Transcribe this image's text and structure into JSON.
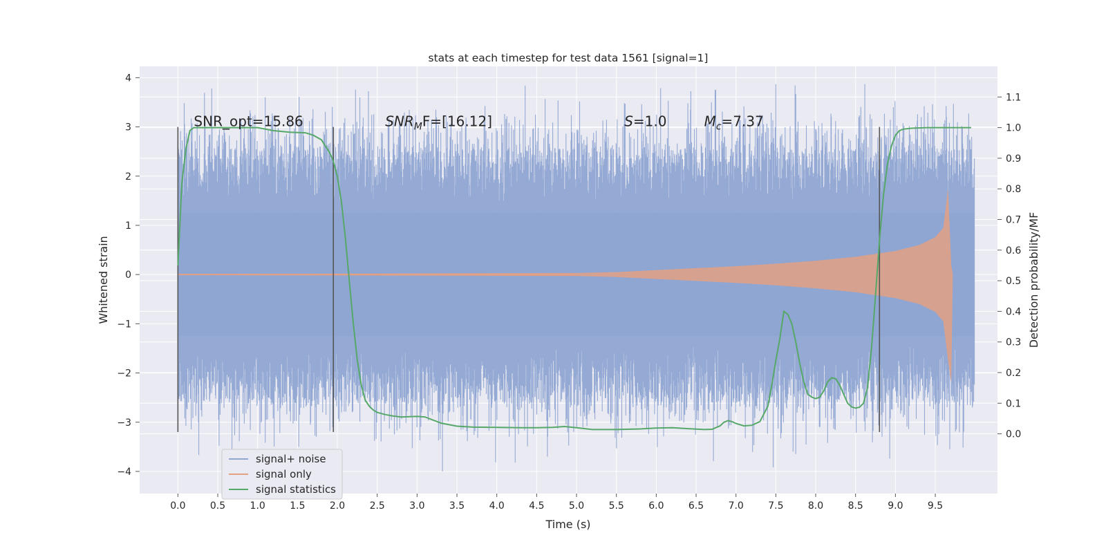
{
  "chart_data": {
    "type": "line",
    "title": "stats at each timestep for test data 1561 [signal=1]",
    "xlabel": "Time (s)",
    "ylabel": "Whitened strain",
    "y2label": "Detection probability/MF",
    "xlim": [
      -0.48,
      10.28
    ],
    "ylim": [
      -4.45,
      4.23
    ],
    "y2lim": [
      -0.195,
      1.2
    ],
    "xticks": [
      0.0,
      0.5,
      1.0,
      1.5,
      2.0,
      2.5,
      3.0,
      3.5,
      4.0,
      4.5,
      5.0,
      5.5,
      6.0,
      6.5,
      7.0,
      7.5,
      8.0,
      8.5,
      9.0,
      9.5
    ],
    "xtick_labels": [
      "0.0",
      "0.5",
      "1.0",
      "1.5",
      "2.0",
      "2.5",
      "3.0",
      "3.5",
      "4.0",
      "4.5",
      "5.0",
      "5.5",
      "6.0",
      "6.5",
      "7.0",
      "7.5",
      "8.0",
      "8.5",
      "9.0",
      "9.5"
    ],
    "yticks": [
      4,
      3,
      2,
      1,
      0,
      -1,
      -2,
      -3,
      -4
    ],
    "ytick_labels": [
      "4",
      "3",
      "2",
      "1",
      "0",
      "−1",
      "−2",
      "−3",
      "−4"
    ],
    "y2ticks": [
      1.1,
      1.0,
      0.9,
      0.8,
      0.7,
      0.6,
      0.5,
      0.4,
      0.3,
      0.2,
      0.1,
      0.0
    ],
    "y2tick_labels": [
      "1.1",
      "1.0",
      "0.9",
      "0.8",
      "0.7",
      "0.6",
      "0.5",
      "0.4",
      "0.3",
      "0.2",
      "0.1",
      "0.0"
    ],
    "grid": true,
    "legend_position": "lower-left",
    "series": [
      {
        "name": "signal+ noise",
        "color": "#8fa5d2",
        "kind": "dense-noise",
        "x_range": [
          0.0,
          9.99
        ],
        "envelope_y": [
          -2.6,
          2.6
        ],
        "spike_max": [
          3.87,
          -4.0
        ]
      },
      {
        "name": "signal only",
        "color": "#e3a083",
        "kind": "chirp",
        "x_range": [
          0.0,
          9.7
        ],
        "envelope_x": [
          0.0,
          5.0,
          5.5,
          6.0,
          6.5,
          7.0,
          7.5,
          8.0,
          8.5,
          9.0,
          9.3,
          9.5,
          9.6,
          9.66,
          9.7,
          9.72
        ],
        "envelope_y": [
          0.01,
          0.03,
          0.05,
          0.09,
          0.13,
          0.17,
          0.22,
          0.28,
          0.36,
          0.48,
          0.6,
          0.76,
          0.95,
          1.75,
          0.2,
          0.0
        ]
      },
      {
        "name": "signal statistics",
        "color": "#55a868",
        "kind": "line",
        "axis": "right",
        "x": [
          0.0,
          0.05,
          0.1,
          0.15,
          0.2,
          0.3,
          0.5,
          0.8,
          1.0,
          1.2,
          1.4,
          1.6,
          1.7,
          1.8,
          1.85,
          1.9,
          1.95,
          2.0,
          2.05,
          2.1,
          2.15,
          2.2,
          2.25,
          2.3,
          2.35,
          2.4,
          2.45,
          2.5,
          2.6,
          2.7,
          2.8,
          3.0,
          3.1,
          3.2,
          3.3,
          3.5,
          3.7,
          4.0,
          4.3,
          4.5,
          4.7,
          4.85,
          5.0,
          5.2,
          5.5,
          5.8,
          6.0,
          6.2,
          6.4,
          6.6,
          6.7,
          6.8,
          6.85,
          6.9,
          6.95,
          7.0,
          7.1,
          7.2,
          7.3,
          7.4,
          7.45,
          7.5,
          7.55,
          7.6,
          7.65,
          7.7,
          7.75,
          7.8,
          7.85,
          7.9,
          7.95,
          8.0,
          8.05,
          8.1,
          8.15,
          8.2,
          8.25,
          8.3,
          8.35,
          8.4,
          8.45,
          8.5,
          8.55,
          8.6,
          8.65,
          8.7,
          8.75,
          8.8,
          8.85,
          8.9,
          8.95,
          9.0,
          9.05,
          9.1,
          9.2,
          9.4,
          9.6,
          9.8,
          9.95
        ],
        "y": [
          0.55,
          0.82,
          0.93,
          0.99,
          1.0,
          1.0,
          1.0,
          1.0,
          1.0,
          0.99,
          0.985,
          0.983,
          0.975,
          0.96,
          0.94,
          0.92,
          0.89,
          0.84,
          0.76,
          0.64,
          0.5,
          0.36,
          0.24,
          0.16,
          0.11,
          0.09,
          0.078,
          0.07,
          0.063,
          0.058,
          0.055,
          0.057,
          0.055,
          0.045,
          0.035,
          0.025,
          0.022,
          0.021,
          0.02,
          0.02,
          0.021,
          0.024,
          0.02,
          0.014,
          0.014,
          0.016,
          0.019,
          0.02,
          0.017,
          0.014,
          0.015,
          0.026,
          0.038,
          0.043,
          0.04,
          0.034,
          0.026,
          0.028,
          0.04,
          0.09,
          0.16,
          0.24,
          0.31,
          0.4,
          0.39,
          0.36,
          0.3,
          0.23,
          0.17,
          0.13,
          0.12,
          0.115,
          0.12,
          0.14,
          0.17,
          0.183,
          0.18,
          0.16,
          0.13,
          0.1,
          0.088,
          0.084,
          0.087,
          0.1,
          0.15,
          0.28,
          0.45,
          0.63,
          0.78,
          0.88,
          0.94,
          0.975,
          0.99,
          0.995,
          0.998,
          1.0,
          1.0,
          1.0,
          1.0
        ]
      }
    ],
    "vlines_x": [
      0.0,
      1.95,
      8.8
    ],
    "vlines_y": [
      -3.2,
      3.0
    ],
    "annotations": [
      {
        "text": "SNR_opt=15.86",
        "x": 0.2,
        "y": 3.0
      },
      {
        "text_main": "SNR",
        "text_sub": "M",
        "text_tail": "F=[16.12]",
        "x": 2.6,
        "y": 3.0
      },
      {
        "text_main": "S",
        "text_tail": "=1.0",
        "x": 5.6,
        "y": 3.0
      },
      {
        "text_main": "M",
        "text_sub": "c",
        "text_tail": "=7.37",
        "x": 6.6,
        "y": 3.0
      }
    ]
  }
}
